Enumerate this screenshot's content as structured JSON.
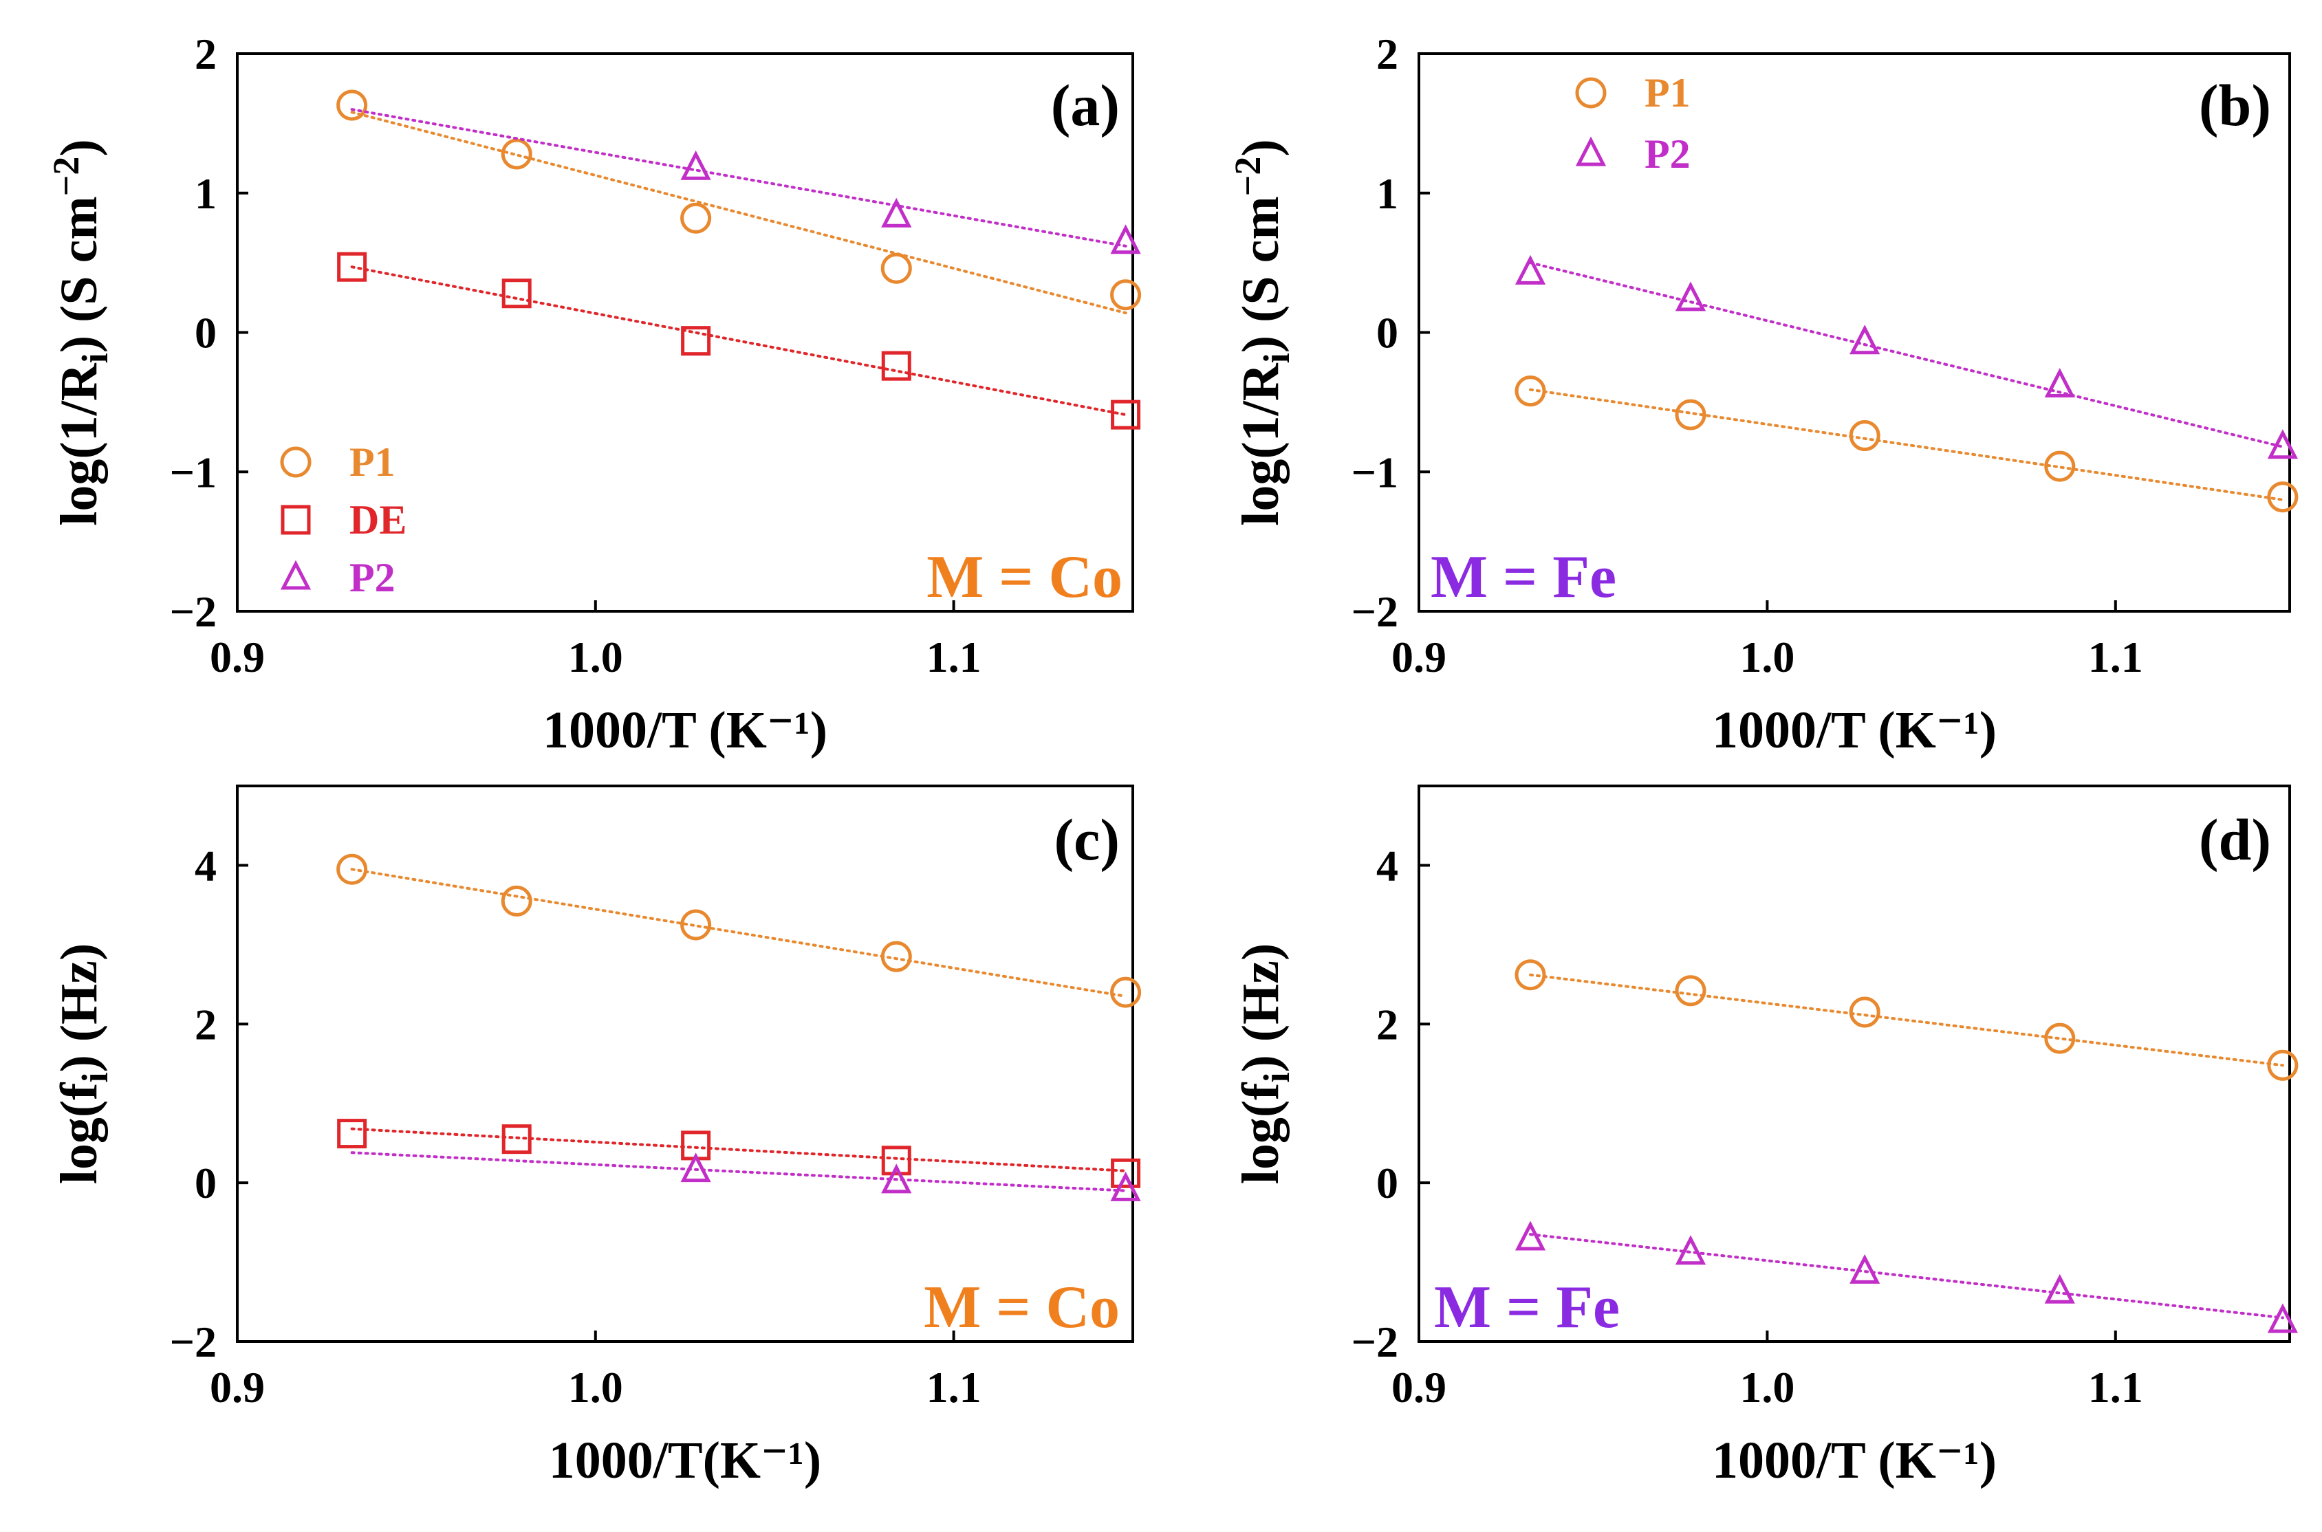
{
  "colors": {
    "P1": "#e8892f",
    "DE": "#e0262a",
    "P2": "#c12ec8",
    "co_label": "#f07f1e",
    "fe_label": "#8a2be2",
    "axis": "#000000"
  },
  "chart_data": [
    {
      "id": "a",
      "type": "scatter",
      "panel_label": "(a)",
      "metal_label": "M = Co",
      "metal_color_key": "co_label",
      "xlabel": "1000/T (K⁻¹)",
      "ylabel_main": "log(1/R",
      "ylabel_sub": "i",
      "ylabel_tail": ") (S cm",
      "ylabel_sup": "−2",
      "ylabel_close": ")",
      "xlim": [
        0.9,
        1.15
      ],
      "ylim": [
        -2,
        2
      ],
      "xticks": [
        0.9,
        1.0,
        1.1
      ],
      "xtick_labels": [
        "0.9",
        "1.0",
        "1.1"
      ],
      "yticks": [
        -2,
        -1,
        0,
        1,
        2
      ],
      "ytick_labels": [
        "−2",
        "−1",
        "0",
        "1",
        "2"
      ],
      "legend": {
        "position": "bottom-left",
        "entries": [
          "P1",
          "DE",
          "P2"
        ]
      },
      "series": [
        {
          "name": "P1",
          "marker": "circle",
          "x": [
            0.932,
            0.978,
            1.028,
            1.084,
            1.148
          ],
          "y": [
            1.63,
            1.28,
            0.82,
            0.46,
            0.27
          ],
          "fit": [
            1.58,
            0.14
          ]
        },
        {
          "name": "DE",
          "marker": "square",
          "x": [
            0.932,
            0.978,
            1.028,
            1.084,
            1.148
          ],
          "y": [
            0.47,
            0.28,
            -0.06,
            -0.24,
            -0.59
          ],
          "fit": [
            0.47,
            -0.59
          ]
        },
        {
          "name": "P2",
          "marker": "triangle",
          "x": [
            1.028,
            1.084,
            1.148
          ],
          "y": [
            1.18,
            0.84,
            0.65
          ],
          "fit": [
            1.6,
            0.62
          ],
          "fit_x": [
            0.932,
            1.148
          ]
        }
      ]
    },
    {
      "id": "b",
      "type": "scatter",
      "panel_label": "(b)",
      "metal_label": "M = Fe",
      "metal_color_key": "fe_label",
      "xlabel": "1000/T (K⁻¹)",
      "ylabel_main": "log(1/R",
      "ylabel_sub": "i",
      "ylabel_tail": ") (S cm",
      "ylabel_sup": "−2",
      "ylabel_close": ")",
      "xlim": [
        0.9,
        1.15
      ],
      "ylim": [
        -2,
        2
      ],
      "xticks": [
        0.9,
        1.0,
        1.1
      ],
      "xtick_labels": [
        "0.9",
        "1.0",
        "1.1"
      ],
      "yticks": [
        -2,
        -1,
        0,
        1,
        2
      ],
      "ytick_labels": [
        "−2",
        "−1",
        "0",
        "1",
        "2"
      ],
      "legend": {
        "position": "top-left",
        "entries": [
          "P1",
          "P2"
        ]
      },
      "series": [
        {
          "name": "P1",
          "marker": "circle",
          "x": [
            0.932,
            0.978,
            1.028,
            1.084,
            1.148
          ],
          "y": [
            -0.42,
            -0.59,
            -0.74,
            -0.96,
            -1.18
          ],
          "fit": [
            -0.41,
            -1.2
          ]
        },
        {
          "name": "P2",
          "marker": "triangle",
          "x": [
            0.932,
            0.978,
            1.028,
            1.084,
            1.148
          ],
          "y": [
            0.43,
            0.24,
            -0.07,
            -0.38,
            -0.82
          ],
          "fit": [
            0.5,
            -0.82
          ]
        }
      ]
    },
    {
      "id": "c",
      "type": "scatter",
      "panel_label": "(c)",
      "metal_label": "M = Co",
      "metal_color_key": "co_label",
      "xlabel": "1000/T(K⁻¹)",
      "ylabel_main": "log(f",
      "ylabel_sub": "i",
      "ylabel_tail": ") (Hz)",
      "ylabel_sup": "",
      "ylabel_close": "",
      "xlim": [
        0.9,
        1.15
      ],
      "ylim": [
        -2,
        5
      ],
      "xticks": [
        0.9,
        1.0,
        1.1
      ],
      "xtick_labels": [
        "0.9",
        "1.0",
        "1.1"
      ],
      "yticks": [
        -2,
        0,
        2,
        4
      ],
      "ytick_labels": [
        "−2",
        "0",
        "2",
        "4"
      ],
      "legend": {
        "position": "none",
        "entries": []
      },
      "series": [
        {
          "name": "P1",
          "marker": "circle",
          "x": [
            0.932,
            0.978,
            1.028,
            1.084,
            1.148
          ],
          "y": [
            3.95,
            3.55,
            3.25,
            2.85,
            2.4
          ],
          "fit": [
            3.95,
            2.35
          ]
        },
        {
          "name": "DE",
          "marker": "square",
          "x": [
            0.932,
            0.978,
            1.028,
            1.084,
            1.148
          ],
          "y": [
            0.62,
            0.55,
            0.47,
            0.28,
            0.12
          ],
          "fit": [
            0.68,
            0.15
          ]
        },
        {
          "name": "P2",
          "marker": "triangle",
          "x": [
            1.028,
            1.084,
            1.148
          ],
          "y": [
            0.16,
            0.02,
            -0.08
          ],
          "fit": [
            0.38,
            -0.1
          ],
          "fit_x": [
            0.932,
            1.148
          ]
        }
      ]
    },
    {
      "id": "d",
      "type": "scatter",
      "panel_label": "(d)",
      "metal_label": "M = Fe",
      "metal_color_key": "fe_label",
      "xlabel": "1000/T (K⁻¹)",
      "ylabel_main": "log(f",
      "ylabel_sub": "i",
      "ylabel_tail": ") (Hz)",
      "ylabel_sup": "",
      "ylabel_close": "",
      "xlim": [
        0.9,
        1.15
      ],
      "ylim": [
        -2,
        5
      ],
      "xticks": [
        0.9,
        1.0,
        1.1
      ],
      "xtick_labels": [
        "0.9",
        "1.0",
        "1.1"
      ],
      "yticks": [
        -2,
        0,
        2,
        4
      ],
      "ytick_labels": [
        "−2",
        "0",
        "2",
        "4"
      ],
      "legend": {
        "position": "none",
        "entries": []
      },
      "series": [
        {
          "name": "P1",
          "marker": "circle",
          "x": [
            0.932,
            0.978,
            1.028,
            1.084,
            1.148
          ],
          "y": [
            2.62,
            2.42,
            2.15,
            1.82,
            1.48
          ],
          "fit": [
            2.62,
            1.48
          ]
        },
        {
          "name": "P2",
          "marker": "triangle",
          "x": [
            0.932,
            0.978,
            1.028,
            1.084,
            1.148
          ],
          "y": [
            -0.7,
            -0.88,
            -1.12,
            -1.37,
            -1.74
          ],
          "fit": [
            -0.65,
            -1.7
          ]
        }
      ]
    }
  ]
}
